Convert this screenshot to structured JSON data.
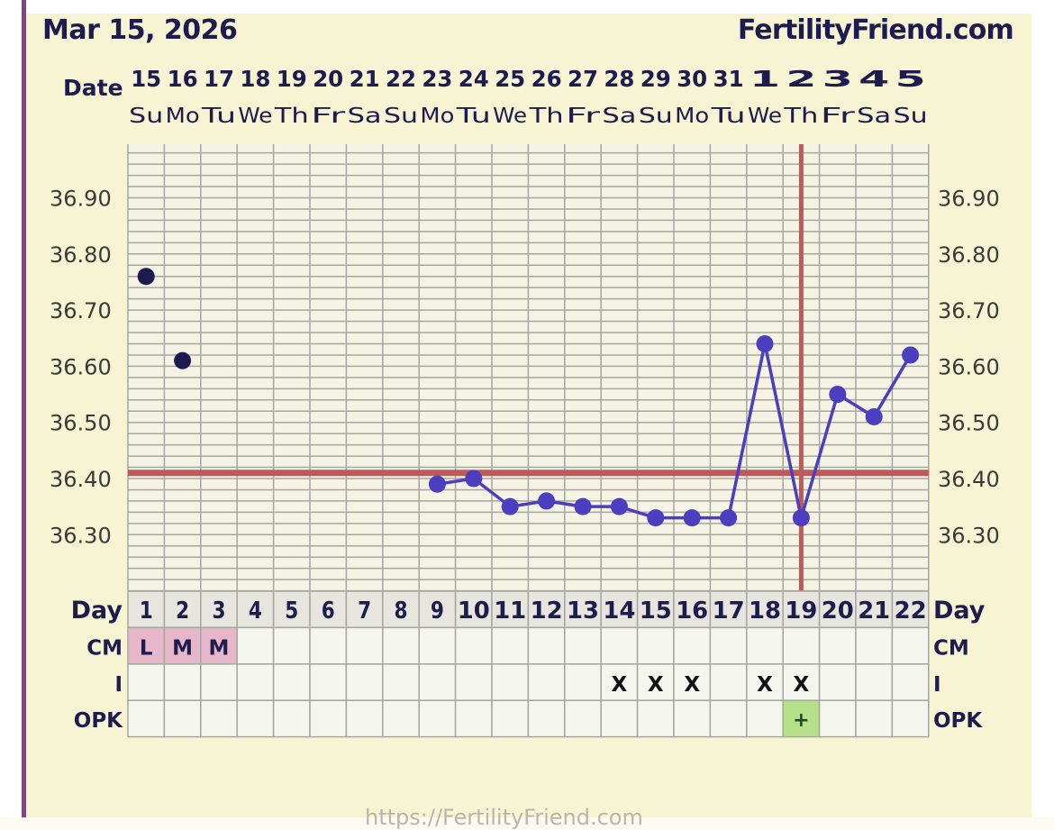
{
  "header": {
    "date": "Mar 15, 2026",
    "brand": "FertilityFriend.com"
  },
  "footer": {
    "url": "https://FertilityFriend.com"
  },
  "colors": {
    "background": "#f7f4d3",
    "line": "#4b3fbf",
    "early_point": "#1c1a4e",
    "coverline": "#c0575a",
    "ovulation_line": "#c0575a",
    "menstruation_cell": "#e6b6c9",
    "opk_positive_cell": "#b6e08a",
    "text": "#1e1b4f"
  },
  "chart_data": {
    "type": "line",
    "row_labels": {
      "date": "Date",
      "day": "Day",
      "cm": "CM",
      "i": "I",
      "opk": "OPK"
    },
    "dates": [
      "15",
      "16",
      "17",
      "18",
      "19",
      "20",
      "21",
      "22",
      "23",
      "24",
      "25",
      "26",
      "27",
      "28",
      "29",
      "30",
      "31",
      "1",
      "2",
      "3",
      "4",
      "5"
    ],
    "weekdays": [
      "Su",
      "Mo",
      "Tu",
      "We",
      "Th",
      "Fr",
      "Sa",
      "Su",
      "Mo",
      "Tu",
      "We",
      "Th",
      "Fr",
      "Sa",
      "Su",
      "Mo",
      "Tu",
      "We",
      "Th",
      "Fr",
      "Sa",
      "Su"
    ],
    "cycle_days": [
      1,
      2,
      3,
      4,
      5,
      6,
      7,
      8,
      9,
      10,
      11,
      12,
      13,
      14,
      15,
      16,
      17,
      18,
      19,
      20,
      21,
      22
    ],
    "y_ticks": [
      36.9,
      36.8,
      36.7,
      36.6,
      36.5,
      36.4,
      36.3
    ],
    "y_tick_labels": [
      "36.90",
      "36.80",
      "36.70",
      "36.60",
      "36.50",
      "36.40",
      "36.30"
    ],
    "ylim": [
      36.2,
      36.99
    ],
    "grid": true,
    "series": [
      {
        "style": "points-only",
        "x": [
          1,
          2
        ],
        "y": [
          36.76,
          36.61
        ]
      },
      {
        "style": "line",
        "x": [
          9,
          10,
          11,
          12,
          13,
          14,
          15,
          16,
          17,
          18,
          19,
          20,
          21,
          22
        ],
        "y": [
          36.39,
          36.4,
          36.35,
          36.36,
          36.35,
          36.35,
          36.33,
          36.33,
          36.33,
          36.64,
          36.33,
          36.55,
          36.51,
          36.62
        ]
      }
    ],
    "coverline": 36.41,
    "ovulation_day": 19,
    "cm": {
      "1": "L",
      "2": "M",
      "3": "M"
    },
    "intercourse_label": "X",
    "intercourse_days": [
      14,
      15,
      16,
      18,
      19
    ],
    "opk": {
      "19": "+"
    }
  }
}
